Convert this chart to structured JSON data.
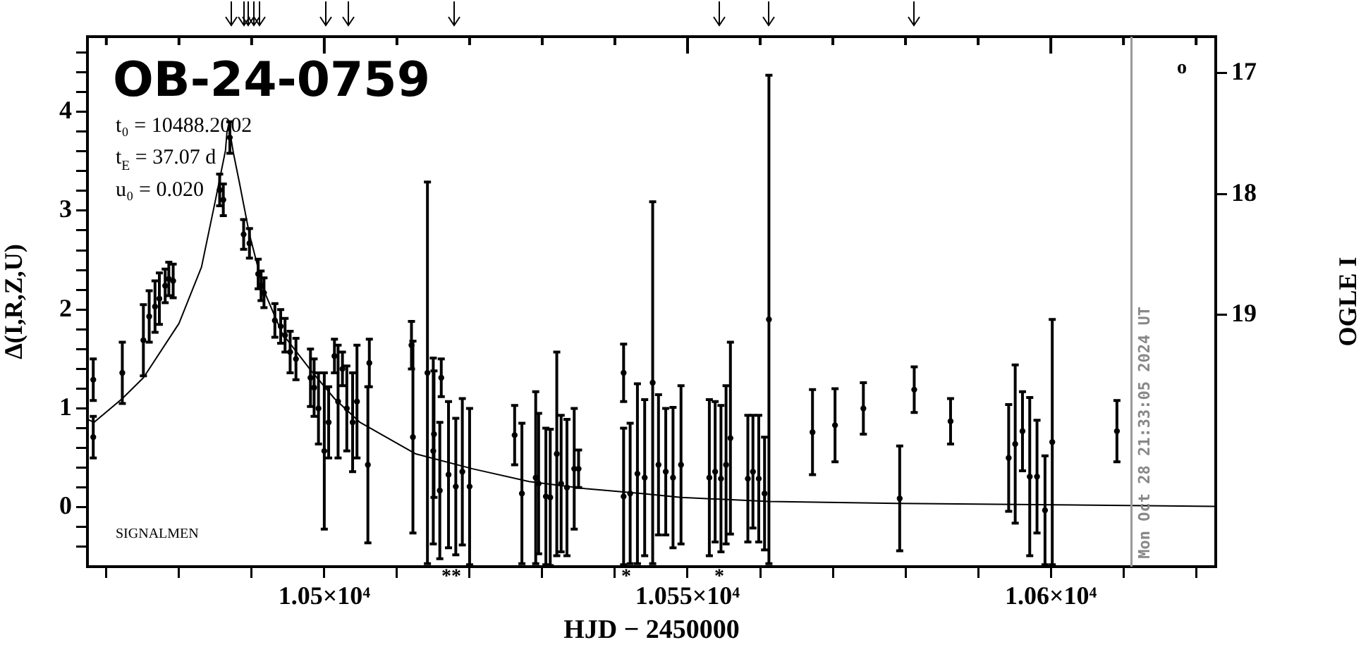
{
  "chart_data": {
    "type": "scatter",
    "title": "OB-24-0759",
    "xlabel": "HJD − 2450000",
    "ylabel": "Δ(I,R,Z,U)",
    "y2label": "OGLE I",
    "annotations": [
      "t₀ = 10488.2002",
      "t$_{E}$ = 37.07 d",
      "u₀ = 0.020",
      "SIGNALMEN",
      "Mon Oct 28 21:33:05 2024 UT",
      "o",
      "**",
      "*",
      "*"
    ],
    "xlim": [
      10467.4,
      10622.7
    ],
    "xticks": [
      {
        "value": 10470,
        "label": null
      },
      {
        "value": 10480,
        "label": null
      },
      {
        "value": 10490,
        "label": null
      },
      {
        "value": 10500,
        "label": "1.05×10⁴"
      },
      {
        "value": 10510,
        "label": null
      },
      {
        "value": 10520,
        "label": null
      },
      {
        "value": 10530,
        "label": null
      },
      {
        "value": 10540,
        "label": null
      },
      {
        "value": 10550,
        "label": "1.055×10⁴"
      },
      {
        "value": 10560,
        "label": null
      },
      {
        "value": 10570,
        "label": null
      },
      {
        "value": 10580,
        "label": null
      },
      {
        "value": 10590,
        "label": null
      },
      {
        "value": 10600,
        "label": "1.06×10⁴"
      },
      {
        "value": 10610,
        "label": null
      },
      {
        "value": 10620,
        "label": null
      }
    ],
    "ylim": [
      -0.6,
      4.76
    ],
    "yticks": [
      {
        "value": -0.4,
        "label": null
      },
      {
        "value": -0.2,
        "label": null
      },
      0,
      {
        "value": 0.2,
        "label": null
      },
      {
        "value": 0.4,
        "label": null
      },
      {
        "value": 0.6,
        "label": null
      },
      {
        "value": 0.8,
        "label": null
      },
      1,
      {
        "value": 1.2,
        "label": null
      },
      {
        "value": 1.4,
        "label": null
      },
      {
        "value": 1.6,
        "label": null
      },
      {
        "value": 1.8,
        "label": null
      },
      2,
      {
        "value": 2.2,
        "label": null
      },
      {
        "value": 2.4,
        "label": null
      },
      {
        "value": 2.6,
        "label": null
      },
      {
        "value": 2.8,
        "label": null
      },
      3,
      {
        "value": 3.2,
        "label": null
      },
      {
        "value": 3.4,
        "label": null
      },
      {
        "value": 3.6,
        "label": null
      },
      {
        "value": 3.8,
        "label": null
      },
      4,
      {
        "value": 4.2,
        "label": null
      },
      {
        "value": 4.4,
        "label": null
      },
      {
        "value": 4.6,
        "label": null
      }
    ],
    "y2lim": [
      21.08,
      16.7
    ],
    "y2ticks": [
      17,
      18,
      19
    ],
    "ref_lines": [
      {
        "axis": "x",
        "value": 10611.1,
        "color": "#999999"
      }
    ],
    "series": [
      {
        "type": "scatter",
        "color": "#000000",
        "marker": "circle",
        "x": [
          10468.2,
          10468.2,
          10472.2,
          10475.1,
          10475.9,
          10476.7,
          10477.3,
          10478.1,
          10478.6,
          10479.2,
          10485.6,
          10486.1,
          10487.0,
          10488.9,
          10489.7,
          10490.9,
          10491.3,
          10491.7,
          10493.2,
          10494.0,
          10494.6,
          10495.3,
          10496.1,
          10498.1,
          10498.6,
          10499.2,
          10500.0,
          10500.6,
          10501.4,
          10501.9,
          10502.5,
          10503.1,
          10503.9,
          10504.5,
          10506.0,
          10506.2,
          10512.0,
          10512.2,
          10514.2,
          10515.0,
          10515.1,
          10515.9,
          10516.1,
          10517.1,
          10518.1,
          10519.0,
          10520.0,
          10526.2,
          10527.2,
          10529.1,
          10529.5,
          10530.5,
          10531.1,
          10532.0,
          10532.6,
          10533.4,
          10534.4,
          10535.0,
          10541.2,
          10541.2,
          10542.1,
          10543.1,
          10544.1,
          10545.2,
          10546.0,
          10547.0,
          10548.0,
          10549.1,
          10553.0,
          10553.8,
          10554.6,
          10555.3,
          10555.9,
          10558.3,
          10559.0,
          10559.8,
          10560.6,
          10561.2,
          10567.2,
          10570.3,
          10574.2,
          10579.2,
          10581.2,
          10586.2,
          10594.2,
          10595.1,
          10596.1,
          10597.1,
          10598.1,
          10599.2,
          10600.2,
          10609.1
        ],
        "values": [
          1.29,
          0.71,
          1.36,
          1.69,
          1.93,
          2.03,
          2.11,
          2.24,
          2.31,
          2.29,
          3.21,
          3.11,
          3.74,
          2.76,
          2.67,
          2.36,
          2.24,
          2.17,
          1.89,
          1.83,
          1.74,
          1.57,
          1.5,
          1.31,
          1.21,
          1.0,
          0.57,
          0.86,
          1.53,
          1.07,
          1.4,
          1.0,
          0.86,
          1.07,
          0.43,
          1.46,
          1.64,
          0.71,
          1.36,
          0.57,
          0.74,
          0.17,
          1.31,
          0.33,
          0.21,
          0.36,
          0.21,
          0.73,
          0.14,
          0.3,
          0.24,
          0.11,
          0.1,
          0.54,
          0.24,
          0.2,
          0.39,
          0.39,
          1.36,
          0.11,
          0.14,
          0.34,
          0.3,
          1.26,
          0.43,
          0.36,
          0.3,
          0.43,
          0.3,
          0.36,
          0.29,
          0.43,
          0.7,
          0.29,
          0.36,
          0.29,
          0.14,
          1.9,
          0.76,
          0.83,
          1.0,
          0.09,
          1.19,
          0.87,
          0.5,
          0.64,
          0.77,
          0.31,
          0.31,
          -0.03,
          0.66,
          0.77
        ],
        "errors": [
          0.21,
          0.21,
          0.31,
          0.36,
          0.26,
          0.26,
          0.26,
          0.17,
          0.17,
          0.17,
          0.16,
          0.16,
          0.16,
          0.15,
          0.15,
          0.15,
          0.15,
          0.15,
          0.17,
          0.17,
          0.17,
          0.21,
          0.21,
          0.29,
          0.29,
          0.36,
          0.79,
          0.36,
          0.17,
          0.57,
          0.17,
          0.43,
          0.5,
          0.57,
          0.79,
          0.24,
          0.24,
          0.97,
          1.93,
          0.94,
          0.64,
          0.69,
          0.19,
          0.74,
          0.69,
          0.74,
          0.79,
          0.3,
          0.71,
          0.87,
          0.71,
          0.69,
          0.69,
          1.03,
          0.69,
          0.69,
          0.61,
          0.19,
          0.29,
          0.69,
          0.71,
          0.91,
          0.79,
          1.83,
          0.71,
          0.64,
          0.71,
          0.8,
          0.79,
          0.71,
          0.74,
          0.8,
          0.97,
          0.64,
          0.57,
          0.64,
          0.57,
          2.47,
          0.43,
          0.37,
          0.26,
          0.53,
          0.23,
          0.23,
          0.54,
          0.8,
          0.4,
          0.8,
          0.57,
          0.55,
          1.24,
          0.31
        ]
      },
      {
        "type": "line",
        "color": "#000000",
        "x": [
          10467.4,
          10468.3,
          10472.2,
          10475.1,
          10480.0,
          10483.1,
          10485.0,
          10486.4,
          10486.6,
          10486.8,
          10487.0,
          10487.5,
          10488.3,
          10489.7,
          10491.7,
          10494.2,
          10498.1,
          10501.4,
          10504.9,
          10512.6,
          10520.4,
          10528.2,
          10535.9,
          10543.7,
          10549.1,
          10561.2,
          10579.0,
          10622.7
        ],
        "values": [
          0.89,
          0.86,
          1.1,
          1.31,
          1.86,
          2.43,
          3.1,
          3.61,
          3.79,
          3.86,
          3.8,
          3.58,
          3.29,
          2.76,
          2.19,
          1.76,
          1.39,
          1.1,
          0.86,
          0.54,
          0.39,
          0.26,
          0.19,
          0.14,
          0.1,
          0.06,
          0.04,
          0.01
        ]
      }
    ]
  }
}
